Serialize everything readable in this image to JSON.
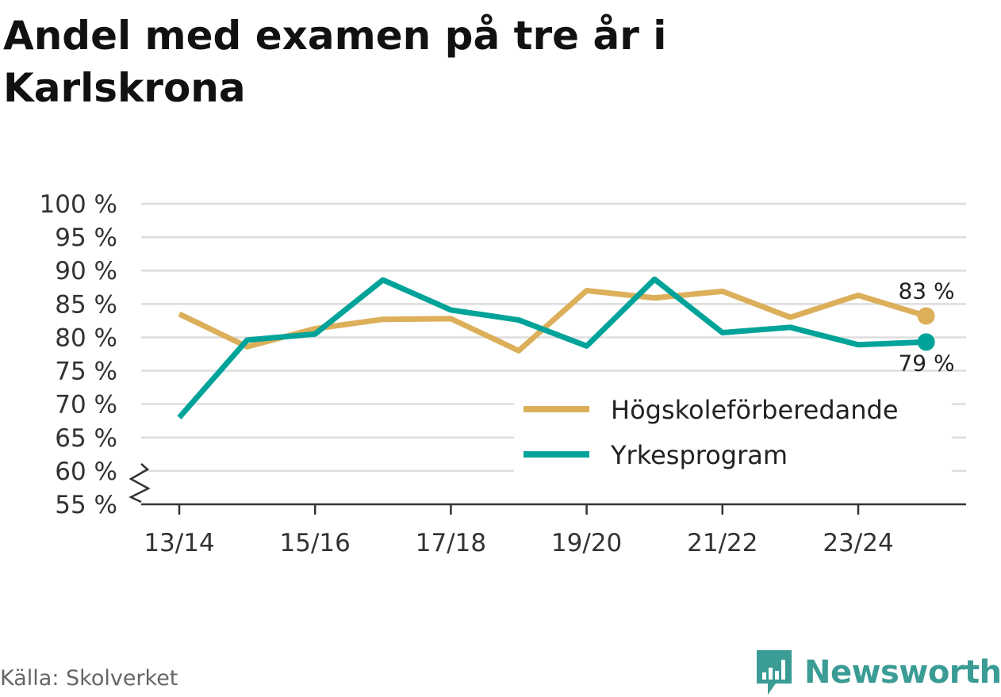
{
  "title": "Andel med examen på tre år i Karlskrona",
  "source": "Källa: Skolverket",
  "brand": {
    "name": "Newsworthy",
    "icon": "bar-chart-speech-bubble-icon",
    "color": "#3a9c95"
  },
  "colors": {
    "grid": "#dddddd",
    "axis": "#333333"
  },
  "chart_data": {
    "type": "line",
    "title": "Andel med examen på tre år i Karlskrona",
    "xlabel": "",
    "ylabel": "",
    "x": [
      "13/14",
      "14/15",
      "15/16",
      "16/17",
      "17/18",
      "18/19",
      "19/20",
      "20/21",
      "21/22",
      "22/23",
      "23/24",
      "24/25"
    ],
    "x_tick_labels": [
      "13/14",
      "15/16",
      "17/18",
      "19/20",
      "21/22",
      "23/24"
    ],
    "y_ticks": [
      55,
      60,
      65,
      70,
      75,
      80,
      85,
      90,
      95,
      100
    ],
    "y_tick_labels": [
      "55 %",
      "60 %",
      "65 %",
      "70 %",
      "75 %",
      "80 %",
      "85 %",
      "90 %",
      "95 %",
      "100 %"
    ],
    "ylim": [
      55,
      100
    ],
    "y_axis_break": true,
    "grid": true,
    "legend_position": "bottom-right",
    "series": [
      {
        "name": "Högskoleförberedande",
        "color": "#dcaf5a",
        "values": [
          83.5,
          78.6,
          81.3,
          82.7,
          82.8,
          78.0,
          87.0,
          85.9,
          86.9,
          83.0,
          86.3,
          83.2
        ],
        "end_label": "83 %"
      },
      {
        "name": "Yrkesprogram",
        "color": "#00a399",
        "values": [
          68.0,
          79.6,
          80.5,
          88.6,
          84.1,
          82.6,
          78.7,
          88.7,
          80.7,
          81.5,
          78.9,
          79.3
        ],
        "end_label": "79 %"
      }
    ]
  }
}
